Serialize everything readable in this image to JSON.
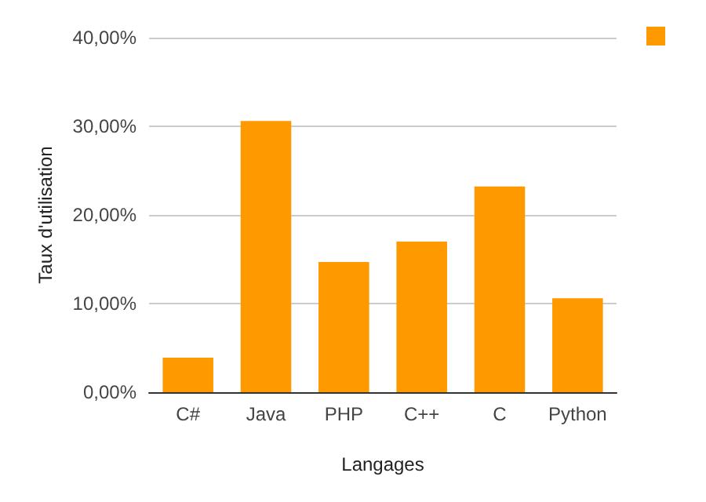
{
  "chart_data": {
    "type": "bar",
    "xlabel": "Langages",
    "ylabel": "Taux d'utilisation",
    "categories": [
      "C#",
      "Java",
      "PHP",
      "C++",
      "C",
      "Python"
    ],
    "series": [
      {
        "color": "#ff9900",
        "values": [
          3.9,
          30.6,
          14.7,
          17.0,
          23.2,
          10.6
        ]
      }
    ],
    "ylim": [
      0,
      40
    ],
    "yticks": [
      {
        "value": 0,
        "label": "0,00%"
      },
      {
        "value": 10,
        "label": "10,00%"
      },
      {
        "value": 20,
        "label": "20,00%"
      },
      {
        "value": 30,
        "label": "30,00%"
      },
      {
        "value": 40,
        "label": "40,00%"
      }
    ],
    "grid": "y"
  }
}
